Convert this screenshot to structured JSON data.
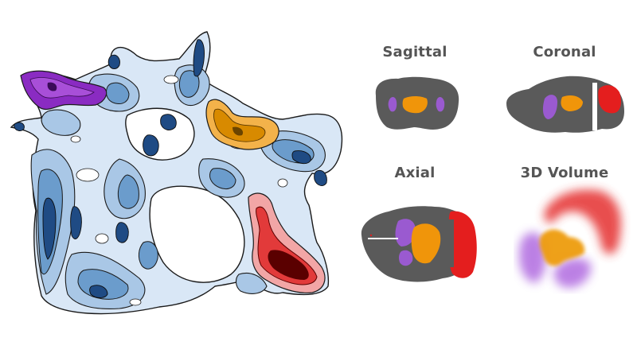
{
  "views": {
    "sagittal": "Sagittal",
    "coronal": "Coronal",
    "axial": "Axial",
    "volume": "3D Volume"
  },
  "colors": {
    "background": "#ffffff",
    "network_level_1": "#d9e7f6",
    "network_level_2": "#a9c7e6",
    "network_level_3": "#6b9ccc",
    "network_level_4": "#2f5f98",
    "network_level_5": "#163e70",
    "contour_line": "#1a1a1a",
    "region_purple": "#8a2bc2",
    "region_orange": "#e59400",
    "region_red": "#d61e1e",
    "region_red_dark": "#5a0000",
    "brain_slice": "#5a5a5a",
    "slice_purple": "#9a5ad0",
    "slice_orange": "#f0950a",
    "slice_red": "#e41e1e"
  }
}
